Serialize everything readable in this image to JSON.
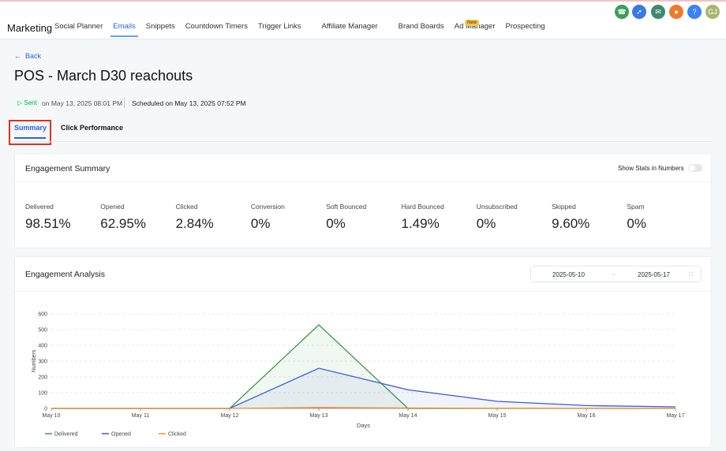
{
  "nav": {
    "brand": "Marketing",
    "items": [
      "Social Planner",
      "Emails",
      "Snippets",
      "Countdown Timers",
      "Trigger Links",
      "Affiliate Manager",
      "Brand Boards",
      "Ad Manager",
      "Prospecting"
    ],
    "badge": "New",
    "help": "?",
    "avatar": "GJ"
  },
  "back": "Back",
  "title": "POS - March D30 reachouts",
  "status": {
    "label": "Sent",
    "sent": "on May 13, 2025 08:01 PM",
    "scheduled": "Scheduled on May 13, 2025 07:52 PM"
  },
  "tabs": [
    "Summary",
    "Click Performance"
  ],
  "summary": {
    "title": "Engagement Summary",
    "toggle": "Show Stats in Numbers",
    "stats": [
      {
        "label": "Delivered",
        "value": "98.51%"
      },
      {
        "label": "Opened",
        "value": "62.95%"
      },
      {
        "label": "Clicked",
        "value": "2.84%"
      },
      {
        "label": "Conversion",
        "value": "0%"
      },
      {
        "label": "Soft Bounced",
        "value": "0%"
      },
      {
        "label": "Hard Bounced",
        "value": "1.49%"
      },
      {
        "label": "Unsubscribed",
        "value": "0%"
      },
      {
        "label": "Skipped",
        "value": "9.60%"
      },
      {
        "label": "Spam",
        "value": "0%"
      }
    ]
  },
  "analysis": {
    "title": "Engagement Analysis",
    "date_from": "2025-05-10",
    "date_to": "2025-05-17"
  },
  "chart_data": {
    "type": "line",
    "xlabel": "Days",
    "ylabel": "Numbers",
    "categories": [
      "May 10",
      "May 11",
      "May 12",
      "May 13",
      "May 14",
      "May 15",
      "May 16",
      "May 17"
    ],
    "ylim": [
      0,
      600
    ],
    "yticks": [
      0,
      100,
      200,
      300,
      400,
      500,
      600
    ],
    "grid": true,
    "series": [
      {
        "name": "Delivered",
        "color": "#3a9a4a",
        "values": [
          0,
          0,
          0,
          530,
          0,
          0,
          0,
          0
        ]
      },
      {
        "name": "Opened",
        "color": "#3b5bdb",
        "values": [
          0,
          0,
          0,
          255,
          118,
          45,
          18,
          10
        ]
      },
      {
        "name": "Clicked",
        "color": "#f0922b",
        "values": [
          0,
          0,
          0,
          6,
          3,
          1,
          0,
          0
        ]
      }
    ]
  }
}
